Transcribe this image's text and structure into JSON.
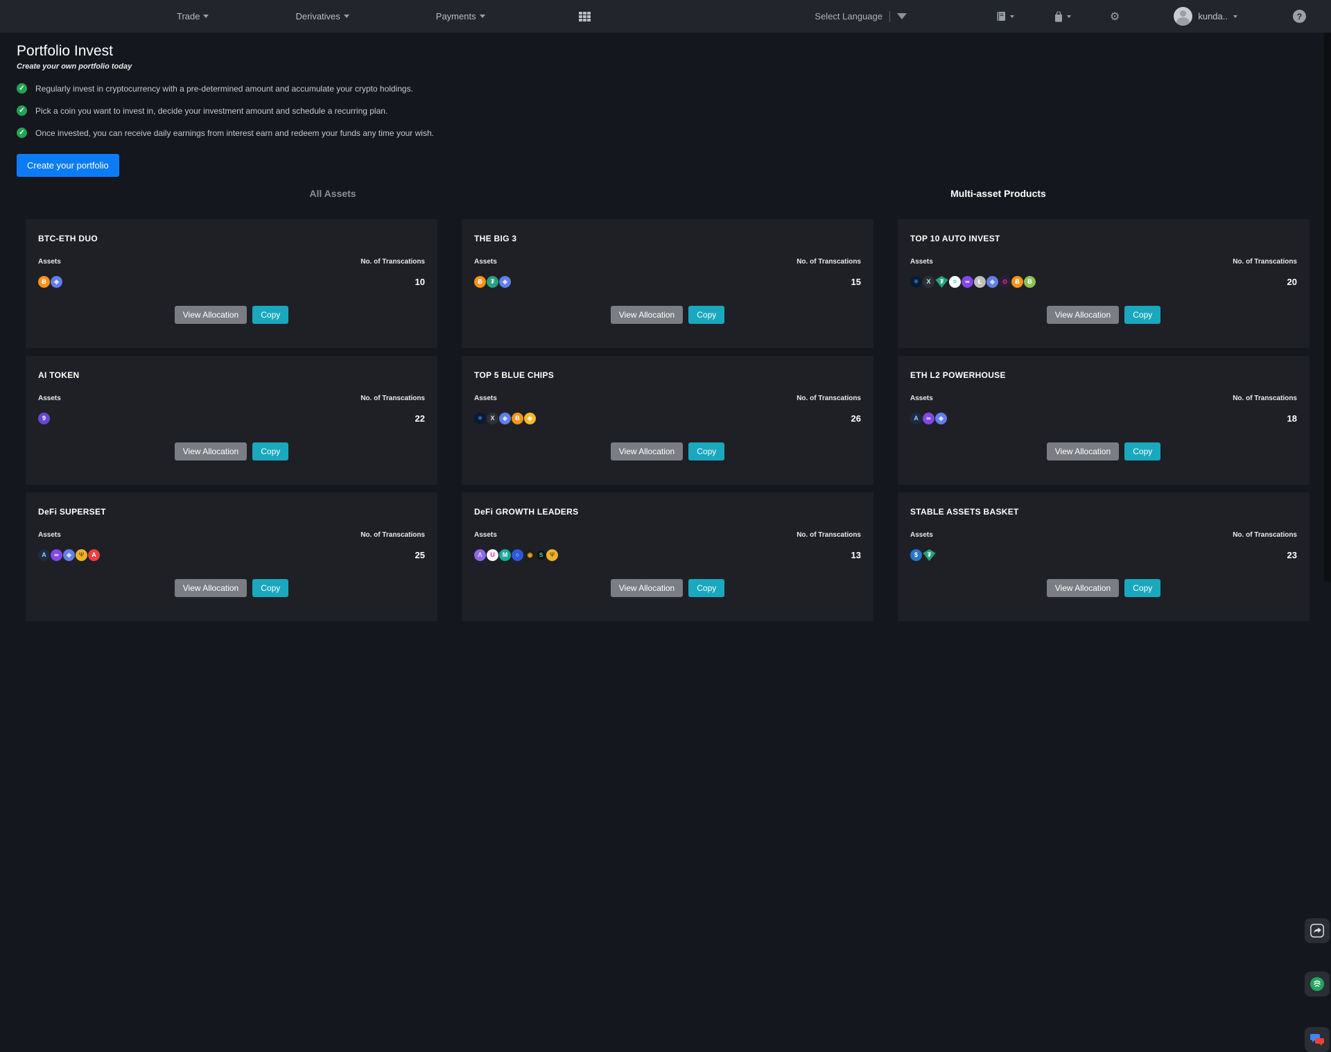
{
  "colors": {
    "page_bg": "#14171e",
    "nav_bg": "#22252c",
    "card_bg": "#1e2025",
    "accent_blue": "#0c7cf6",
    "teal_button": "#19a8be",
    "gray_button": "#7b7d84",
    "check_green": "#22a455"
  },
  "nav": {
    "menus": [
      {
        "label": "Trade"
      },
      {
        "label": "Derivatives"
      },
      {
        "label": "Payments"
      }
    ],
    "language": {
      "label": "Select Language"
    },
    "user": {
      "name": "kunda.."
    },
    "help_glyph": "?"
  },
  "header": {
    "title": "Portfolio Invest",
    "subtitle": "Create your own portfolio today",
    "bullets": [
      "Regularly invest in cryptocurrency with a pre-determined amount and accumulate your crypto holdings.",
      "Pick a coin you want to invest in, decide your investment amount and schedule a recurring plan.",
      "Once invested, you can receive daily earnings from interest earn and redeem your funds any time your wish."
    ],
    "cta": "Create your portfolio"
  },
  "sections": {
    "left": "All Assets",
    "right": "Multi-asset Products"
  },
  "card_labels": {
    "assets": "Assets",
    "transactions": "No. of Transcations",
    "view_allocation": "View Allocation",
    "copy": "Copy"
  },
  "cards": [
    {
      "title": "BTC-ETH DUO",
      "transactions": "10",
      "assets": [
        {
          "name": "btc",
          "bg": "#f7931a",
          "fg": "#ffffff",
          "glyph": "Ƀ"
        },
        {
          "name": "eth",
          "bg": "#627eea",
          "fg": "#d8e0fb",
          "glyph": "◆"
        }
      ]
    },
    {
      "title": "THE BIG 3",
      "transactions": "15",
      "assets": [
        {
          "name": "btc",
          "bg": "#f7931a",
          "fg": "#ffffff",
          "glyph": "Ƀ"
        },
        {
          "name": "usdt",
          "bg": "#26a17b",
          "fg": "#ffffff",
          "glyph": "₮"
        },
        {
          "name": "eth",
          "bg": "#627eea",
          "fg": "#d8e0fb",
          "glyph": "◆"
        }
      ]
    },
    {
      "title": "TOP 10 AUTO INVEST",
      "transactions": "20",
      "assets": [
        {
          "name": "ada",
          "bg": "#0a1b2e",
          "fg": "#3e6fd8",
          "glyph": "☀"
        },
        {
          "name": "xrp",
          "bg": "#2c3137",
          "fg": "#dfe3e8",
          "glyph": "X"
        },
        {
          "name": "usdt-gem",
          "bg": "#26a17b",
          "fg": "#ffffff",
          "glyph": "₮",
          "shape": "diamond"
        },
        {
          "name": "sol",
          "bg": "#ffffff",
          "fg": "#16c79e",
          "glyph": "≡"
        },
        {
          "name": "matic",
          "bg": "#8247e5",
          "fg": "#ffffff",
          "glyph": "∞"
        },
        {
          "name": "ltc",
          "bg": "#bfbfbf",
          "fg": "#ffffff",
          "glyph": "Ł"
        },
        {
          "name": "eth",
          "bg": "#627eea",
          "fg": "#d8e0fb",
          "glyph": "◆"
        },
        {
          "name": "dot",
          "bg": "#26203a",
          "fg": "#ff2f74",
          "glyph": "⊙"
        },
        {
          "name": "btc",
          "bg": "#f7931a",
          "fg": "#ffffff",
          "glyph": "Ƀ"
        },
        {
          "name": "bch",
          "bg": "#8dc351",
          "fg": "#ffffff",
          "glyph": "Ƀ"
        }
      ]
    },
    {
      "title": "AI TOKEN",
      "transactions": "22",
      "assets": [
        {
          "name": "grt",
          "bg": "#6747ce",
          "fg": "#ffffff",
          "glyph": "9"
        }
      ]
    },
    {
      "title": "TOP 5 BLUE CHIPS",
      "transactions": "26",
      "assets": [
        {
          "name": "ada",
          "bg": "#0a1b2e",
          "fg": "#3e6fd8",
          "glyph": "☀"
        },
        {
          "name": "xrp",
          "bg": "#2c3137",
          "fg": "#dfe3e8",
          "glyph": "X"
        },
        {
          "name": "eth",
          "bg": "#627eea",
          "fg": "#d8e0fb",
          "glyph": "◆"
        },
        {
          "name": "btc",
          "bg": "#f7931a",
          "fg": "#ffffff",
          "glyph": "Ƀ"
        },
        {
          "name": "bnb",
          "bg": "#f3ba2f",
          "fg": "#fff8e1",
          "glyph": "◈"
        }
      ]
    },
    {
      "title": "ETH L2 POWERHOUSE",
      "transactions": "18",
      "assets": [
        {
          "name": "arb",
          "bg": "#1c2c44",
          "fg": "#9fccee",
          "glyph": "A"
        },
        {
          "name": "matic",
          "bg": "#8247e5",
          "fg": "#ffffff",
          "glyph": "∞"
        },
        {
          "name": "eth",
          "bg": "#627eea",
          "fg": "#d8e0fb",
          "glyph": "◆"
        }
      ]
    },
    {
      "title": "DeFi SUPERSET",
      "transactions": "25",
      "assets": [
        {
          "name": "arb",
          "bg": "#1c2c44",
          "fg": "#9fccee",
          "glyph": "A"
        },
        {
          "name": "matic",
          "bg": "#8247e5",
          "fg": "#ffffff",
          "glyph": "∞"
        },
        {
          "name": "eth",
          "bg": "#627eea",
          "fg": "#d8e0fb",
          "glyph": "◆"
        },
        {
          "name": "gold-token",
          "bg": "#ecb22e",
          "fg": "#7a5b00",
          "glyph": "Ψ"
        },
        {
          "name": "avax",
          "bg": "#e84142",
          "fg": "#ffffff",
          "glyph": "A"
        }
      ]
    },
    {
      "title": "DeFi GROWTH LEADERS",
      "transactions": "13",
      "assets": [
        {
          "name": "aave",
          "bg": "#8f67e8",
          "fg": "#f0eaff",
          "glyph": "Λ"
        },
        {
          "name": "uni",
          "bg": "#f7f7f9",
          "fg": "#ff2f9e",
          "glyph": "U"
        },
        {
          "name": "mkr",
          "bg": "#1aab9b",
          "fg": "#ffffff",
          "glyph": "M"
        },
        {
          "name": "link",
          "bg": "#2a5ada",
          "fg": "#ffffff",
          "glyph": "○"
        },
        {
          "name": "gold-knot",
          "bg": "#221f18",
          "fg": "#e3a82b",
          "glyph": "◉"
        },
        {
          "name": "green-token",
          "bg": "#101114",
          "fg": "#2ee6a8",
          "glyph": "S",
          "small": true
        },
        {
          "name": "gold-token",
          "bg": "#ecb22e",
          "fg": "#7a5b00",
          "glyph": "Ψ"
        }
      ]
    },
    {
      "title": "STABLE ASSETS BASKET",
      "transactions": "23",
      "assets": [
        {
          "name": "usdc",
          "bg": "#2775ca",
          "fg": "#ffffff",
          "glyph": "$"
        },
        {
          "name": "usdt-gem",
          "bg": "#26a17b",
          "fg": "#ffffff",
          "glyph": "₮",
          "shape": "diamond"
        }
      ]
    }
  ]
}
